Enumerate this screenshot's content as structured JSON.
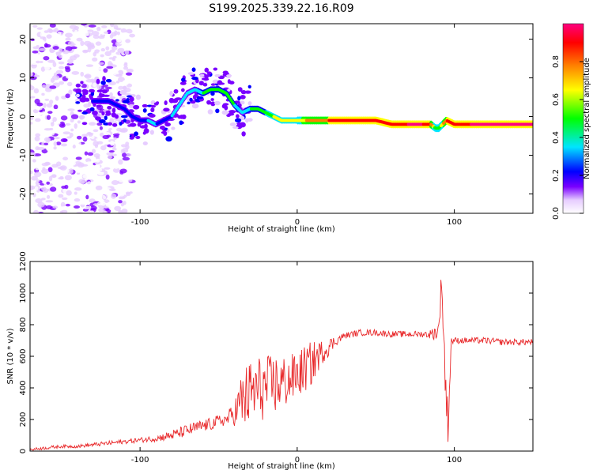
{
  "title": "S199.2025.339.22.16.R09",
  "colors": {
    "snr_line": "#e8282a",
    "background": "#ffffff",
    "colorbar": [
      "#ffffff",
      "#e6ccff",
      "#7a00ff",
      "#0000ff",
      "#00e5ff",
      "#00ff00",
      "#ffff00",
      "#ff7f00",
      "#ff0000",
      "#ff0080"
    ]
  },
  "chart_data": [
    {
      "type": "heatmap",
      "title": "S199.2025.339.22.16.R09",
      "xlabel": "Height of straight line (km)",
      "ylabel": "Frequency (Hz)",
      "xlim": [
        -170,
        150
      ],
      "ylim": [
        -25,
        24
      ],
      "xticks": [
        -100,
        0,
        100
      ],
      "yticks": [
        -20,
        -10,
        0,
        10,
        20
      ],
      "colorbar": {
        "label": "Normalized spectral amplitude",
        "range": [
          0,
          1
        ],
        "ticks": [
          "0.0",
          "0.2",
          "0.4",
          "0.6",
          "0.8"
        ]
      },
      "ridge": {
        "x": [
          -130,
          -120,
          -110,
          -105,
          -100,
          -95,
          -90,
          -85,
          -80,
          -75,
          -70,
          -65,
          -60,
          -55,
          -50,
          -45,
          -40,
          -35,
          -30,
          -25,
          -20,
          -15,
          -10,
          -5,
          0,
          10,
          20,
          30,
          40,
          50,
          60,
          70,
          80,
          85,
          88,
          90,
          95,
          100,
          110,
          120,
          130,
          140,
          150
        ],
        "y": [
          4,
          4,
          2,
          0,
          -1,
          -1,
          -2,
          -1,
          0,
          3,
          6,
          7,
          6,
          7,
          7,
          6,
          3,
          1,
          2,
          2,
          1,
          0,
          -1,
          -1,
          -1,
          -1,
          -1,
          -1,
          -1,
          -1,
          -2,
          -2,
          -2,
          -2,
          -3,
          -3,
          -1,
          -2,
          -2,
          -2,
          -2,
          -2,
          -2
        ],
        "amplitude": [
          0.3,
          0.3,
          0.35,
          0.3,
          0.3,
          0.35,
          0.35,
          0.3,
          0.35,
          0.4,
          0.45,
          0.45,
          0.5,
          0.5,
          0.5,
          0.55,
          0.5,
          0.45,
          0.5,
          0.55,
          0.6,
          0.65,
          0.65,
          0.65,
          0.7,
          0.85,
          0.9,
          0.9,
          0.9,
          0.9,
          0.95,
          1.0,
          1.0,
          0.9,
          0.6,
          0.6,
          0.9,
          0.95,
          1.0,
          1.0,
          1.0,
          1.0,
          1.0
        ]
      },
      "noise_region_x": [
        -170,
        -105
      ]
    },
    {
      "type": "line",
      "xlabel": "Height of straight line (km)",
      "ylabel": "SNR (10 * v/v)",
      "xlim": [
        -170,
        150
      ],
      "ylim": [
        0,
        1200
      ],
      "xticks": [
        -100,
        0,
        100
      ],
      "yticks": [
        0,
        200,
        400,
        600,
        800,
        1000,
        1200
      ],
      "series": [
        {
          "name": "SNR",
          "x": [
            -170,
            -160,
            -150,
            -140,
            -130,
            -120,
            -110,
            -100,
            -90,
            -80,
            -70,
            -60,
            -55,
            -50,
            -45,
            -40,
            -35,
            -30,
            -25,
            -20,
            -15,
            -10,
            -5,
            0,
            5,
            10,
            15,
            20,
            25,
            30,
            40,
            50,
            60,
            70,
            80,
            85,
            90,
            92,
            94,
            96,
            98,
            100,
            110,
            120,
            130,
            140,
            150
          ],
          "values": [
            10,
            20,
            30,
            30,
            40,
            50,
            60,
            70,
            80,
            100,
            130,
            160,
            170,
            190,
            200,
            240,
            320,
            360,
            390,
            400,
            420,
            430,
            450,
            480,
            520,
            560,
            620,
            660,
            700,
            730,
            750,
            750,
            740,
            740,
            740,
            740,
            760,
            1100,
            500,
            150,
            700,
            700,
            700,
            700,
            690,
            690,
            690
          ],
          "jitter": [
            8,
            10,
            10,
            10,
            12,
            14,
            14,
            16,
            20,
            30,
            40,
            40,
            40,
            40,
            40,
            80,
            200,
            220,
            220,
            200,
            200,
            180,
            160,
            150,
            150,
            140,
            80,
            60,
            30,
            20,
            20,
            20,
            20,
            20,
            20,
            30,
            60,
            100,
            200,
            100,
            30,
            20,
            20,
            20,
            20,
            20,
            20
          ]
        }
      ]
    }
  ]
}
